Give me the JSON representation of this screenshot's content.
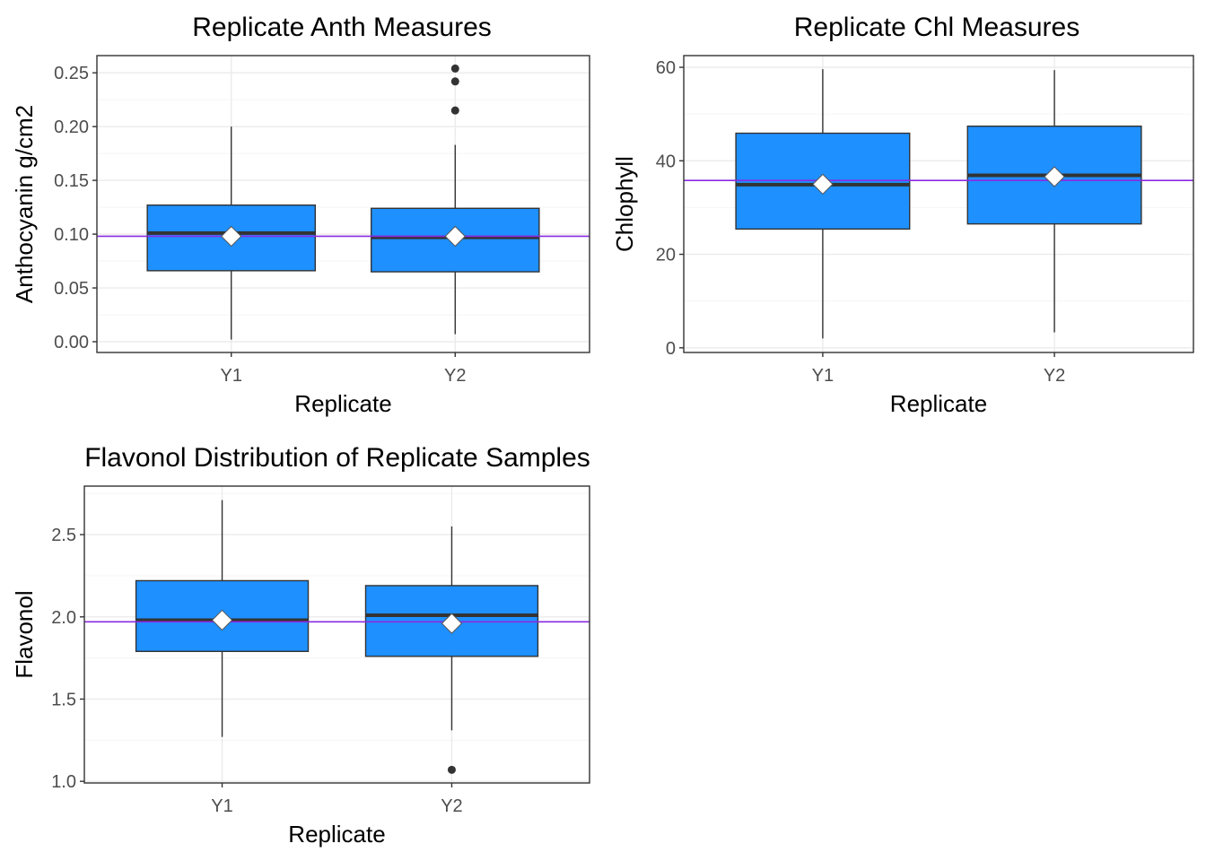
{
  "colors": {
    "box_fill": "#1e90ff",
    "box_outline": "#333333",
    "median": "#333333",
    "mean_line": "#8a2be2",
    "mean_marker_fill": "#ffffff",
    "outlier": "#333333",
    "grid_major": "#ebebeb",
    "grid_minor": "#f5f5f5",
    "panel_border": "#333333"
  },
  "chart_data": [
    {
      "type": "box",
      "title": "Replicate Anth Measures",
      "xlabel": "Replicate",
      "ylabel": "Anthocyanin g/cm2",
      "ylim": [
        -0.01,
        0.266
      ],
      "yticks": [
        0.0,
        0.05,
        0.1,
        0.15,
        0.2,
        0.25
      ],
      "yticklabels": [
        "0.00",
        "0.05",
        "0.10",
        "0.15",
        "0.20",
        "0.25"
      ],
      "grid": true,
      "reference_line": 0.098,
      "boxes": [
        {
          "category": "Y1",
          "min": 0.002,
          "q1": 0.066,
          "median": 0.101,
          "q3": 0.127,
          "max": 0.2,
          "mean": 0.098,
          "outliers": []
        },
        {
          "category": "Y2",
          "min": 0.007,
          "q1": 0.065,
          "median": 0.097,
          "q3": 0.124,
          "max": 0.183,
          "mean": 0.098,
          "outliers": [
            0.215,
            0.242,
            0.254
          ]
        }
      ]
    },
    {
      "type": "box",
      "title": "Replicate Chl Measures",
      "xlabel": "Replicate",
      "ylabel": "Chlophyll",
      "ylim": [
        -1,
        62.5
      ],
      "yticks": [
        0,
        20,
        40,
        60
      ],
      "yticklabels": [
        "0",
        "20",
        "40",
        "60"
      ],
      "grid": true,
      "reference_line": 35.8,
      "boxes": [
        {
          "category": "Y1",
          "min": 2,
          "q1": 25.4,
          "median": 34.9,
          "q3": 45.9,
          "max": 59.6,
          "mean": 35,
          "outliers": []
        },
        {
          "category": "Y2",
          "min": 3.3,
          "q1": 26.5,
          "median": 36.9,
          "q3": 47.4,
          "max": 59.4,
          "mean": 36.6,
          "outliers": []
        }
      ]
    },
    {
      "type": "box",
      "title": "Flavonol Distribution of Replicate Samples",
      "xlabel": "Replicate",
      "ylabel": "Flavonol",
      "ylim": [
        0.99,
        2.795
      ],
      "yticks": [
        1.0,
        1.5,
        2.0,
        2.5
      ],
      "yticklabels": [
        "1.0",
        "1.5",
        "2.0",
        "2.5"
      ],
      "grid": true,
      "reference_line": 1.97,
      "boxes": [
        {
          "category": "Y1",
          "min": 1.27,
          "q1": 1.79,
          "median": 1.98,
          "q3": 2.22,
          "max": 2.71,
          "mean": 1.98,
          "outliers": []
        },
        {
          "category": "Y2",
          "min": 1.31,
          "q1": 1.76,
          "median": 2.01,
          "q3": 2.19,
          "max": 2.55,
          "mean": 1.96,
          "outliers": [
            1.07
          ]
        }
      ]
    }
  ]
}
